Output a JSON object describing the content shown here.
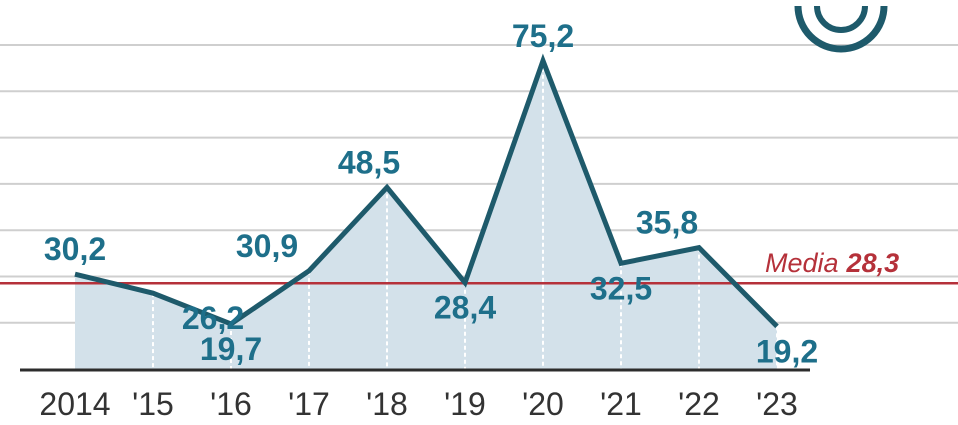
{
  "colors": {
    "line": "#1e5a6b",
    "area": "#d3e1ea",
    "label": "#1e6f8a",
    "grid": "#cfcfcf",
    "axis": "#2c2c2c",
    "ticks": "#333333",
    "average": "#b5313a",
    "logo": "#1e5a6b"
  },
  "icons": {
    "logo": "ring-logo-icon"
  },
  "chart_data": {
    "type": "area",
    "title": "",
    "xlabel": "",
    "ylabel": "",
    "categories": [
      "2014",
      "'15",
      "'16",
      "'17",
      "'18",
      "'19",
      "'20",
      "'21",
      "'22",
      "'23"
    ],
    "values": [
      30.2,
      26.2,
      19.7,
      30.9,
      48.5,
      28.4,
      75.2,
      32.5,
      35.8,
      19.2
    ],
    "data_labels": [
      "30,2",
      "26,2",
      "19,7",
      "30,9",
      "48,5",
      "28,4",
      "75,2",
      "32,5",
      "35,8",
      "19,2"
    ],
    "average": {
      "label": "Media",
      "value": 28.3,
      "value_label": "28,3"
    },
    "ylim": [
      10,
      80
    ],
    "grid": true,
    "legend": "none"
  }
}
